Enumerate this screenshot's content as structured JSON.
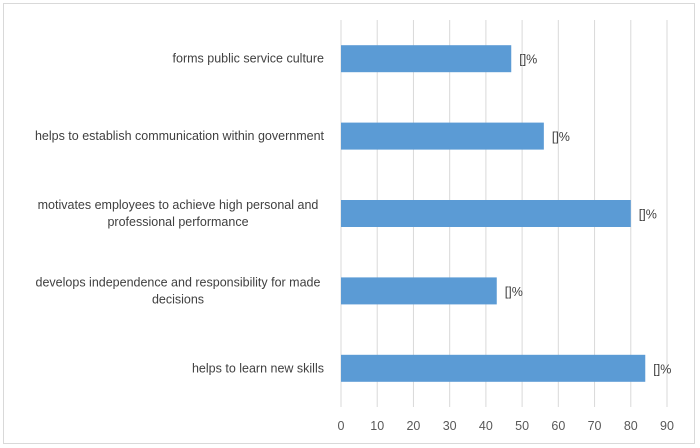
{
  "chart_data": {
    "type": "bar",
    "orientation": "horizontal",
    "categories": [
      [
        "forms public service culture"
      ],
      [
        "helps to establish communication within government"
      ],
      [
        "motivates employees to achieve high personal and",
        "professional performance"
      ],
      [
        "develops independence and responsibility for made",
        "decisions"
      ],
      [
        "helps to learn new skills"
      ]
    ],
    "values": [
      47,
      56,
      80,
      43,
      84
    ],
    "data_label_text": "[]%",
    "xlim": [
      0,
      90
    ],
    "xticks": [
      0,
      10,
      20,
      30,
      40,
      50,
      60,
      70,
      80,
      90
    ],
    "vertical_grid": true,
    "bar_color": "#5b9bd5",
    "grid_color": "#d9d9d9"
  }
}
